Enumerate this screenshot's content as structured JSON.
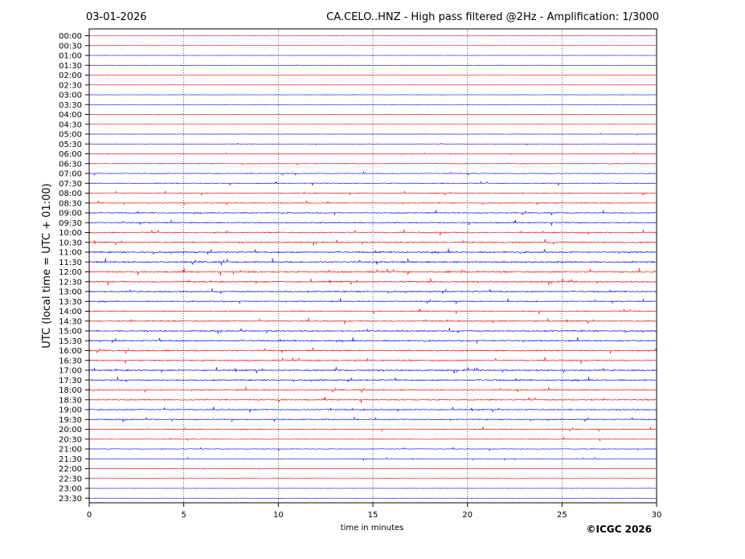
{
  "chart_data": {
    "type": "line",
    "date": "03-01-2026",
    "title": "CA.CELO..HNZ - High pass filtered @2Hz - Amplification: 1/3000",
    "xlabel": "time in minutes",
    "ylabel": "UTC (local time = UTC + 01:00)",
    "copyright": "©ICGC 2026",
    "xlim": [
      0,
      30
    ],
    "x_ticks": [
      "0",
      "5",
      "10",
      "15",
      "20",
      "25",
      "30"
    ],
    "x_tick_values": [
      0,
      5,
      10,
      15,
      20,
      25,
      30
    ],
    "y_tick_labels": [
      "00:00",
      "00:30",
      "01:00",
      "01:30",
      "02:00",
      "02:30",
      "03:00",
      "03:30",
      "04:00",
      "04:30",
      "05:00",
      "05:30",
      "06:00",
      "06:30",
      "07:00",
      "07:30",
      "08:00",
      "08:30",
      "09:00",
      "09:30",
      "10:00",
      "10:30",
      "11:00",
      "11:30",
      "12:00",
      "12:30",
      "13:00",
      "13:30",
      "14:00",
      "14:30",
      "15:00",
      "15:30",
      "16:00",
      "16:30",
      "17:00",
      "17:30",
      "18:00",
      "18:30",
      "19:00",
      "19:30",
      "20:00",
      "20:30",
      "21:00",
      "21:30",
      "22:00",
      "22:30",
      "23:00",
      "23:30"
    ],
    "trace_colors": [
      "#ff0000",
      "#ff0000",
      "#0000ff",
      "#0000ff"
    ],
    "activity_levels": [
      0.05,
      0.05,
      0.08,
      0.12,
      0.1,
      0.1,
      0.1,
      0.12,
      0.1,
      0.15,
      0.2,
      0.25,
      0.3,
      0.45,
      0.5,
      0.55,
      0.6,
      0.65,
      0.7,
      0.75,
      0.8,
      0.85,
      0.95,
      1.0,
      1.0,
      0.9,
      0.85,
      0.75,
      0.7,
      0.8,
      0.85,
      0.9,
      0.9,
      0.85,
      0.9,
      0.85,
      0.8,
      0.8,
      0.75,
      0.7,
      0.65,
      0.5,
      0.4,
      0.35,
      0.3,
      0.25,
      0.1,
      0.05
    ],
    "grid": "vertical dotted at 5-minute marks"
  }
}
